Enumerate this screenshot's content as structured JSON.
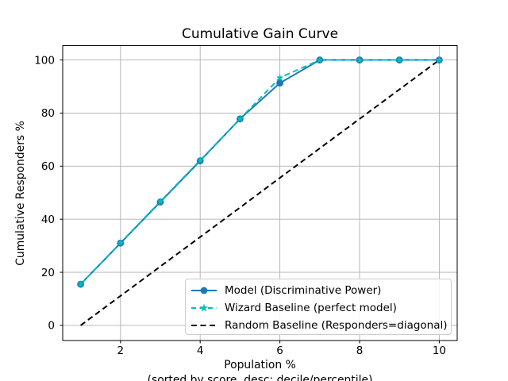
{
  "figure": {
    "background": "#ffffff"
  },
  "chart_data": {
    "type": "line",
    "title": "Cumulative Gain Curve",
    "xlabel": "Population %",
    "xlabel_note": "(sorted by score, desc; decile/percentile)",
    "ylabel": "Cumulative Responders %",
    "x": [
      1,
      2,
      3,
      4,
      5,
      6,
      7,
      8,
      9,
      10
    ],
    "xticks": [
      2,
      4,
      6,
      8,
      10
    ],
    "yticks": [
      0,
      20,
      40,
      60,
      80,
      100
    ],
    "xlim": [
      0.55,
      10.45
    ],
    "ylim": [
      -5.7,
      105.4
    ],
    "grid": true,
    "legend_position": "lower right",
    "series": [
      {
        "name": "Model (Discriminative Power)",
        "color": "#1f77b4",
        "line": "solid",
        "marker": "circle",
        "values": [
          15.5,
          31.0,
          46.5,
          62.0,
          77.8,
          91.3,
          100,
          100,
          100,
          100
        ]
      },
      {
        "name": "Wizard Baseline (perfect model)",
        "color": "#00bfbf",
        "line": "dashed",
        "marker": "star",
        "values": [
          15.5,
          31.1,
          46.7,
          62.2,
          77.8,
          93.3,
          100,
          100,
          100,
          100
        ]
      },
      {
        "name": "Random Baseline (Responders=diagonal)",
        "color": "#000000",
        "line": "dashed",
        "marker": "none",
        "values": [
          0,
          11.1,
          22.2,
          33.3,
          44.4,
          55.6,
          66.7,
          77.8,
          88.9,
          100
        ]
      }
    ],
    "colors": {
      "grid": "#b0b0b0",
      "axes": "#000000",
      "legend_border": "#cccccc"
    }
  }
}
